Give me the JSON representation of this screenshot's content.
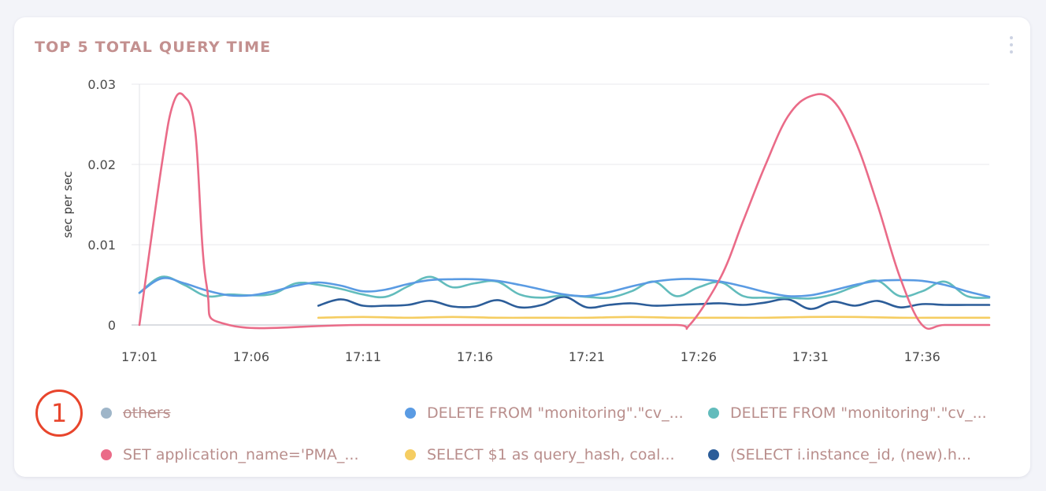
{
  "card": {
    "title": "TOP 5 TOTAL QUERY TIME",
    "menu_icon": "kebab-menu-icon"
  },
  "badge": {
    "label": "1",
    "color": "#e8452c"
  },
  "chart_data": {
    "type": "line",
    "title": "TOP 5 TOTAL QUERY TIME",
    "xlabel": "",
    "ylabel": "sec per sec",
    "ylim": [
      0,
      0.03
    ],
    "xlim": [
      0,
      38
    ],
    "yticks": [
      0,
      0.01,
      0.02,
      0.03
    ],
    "yticklabels": [
      "0",
      "0.01",
      "0.02",
      "0.03"
    ],
    "xticks": [
      0,
      5,
      10,
      15,
      20,
      25,
      30,
      35
    ],
    "xticklabels": [
      "17:01",
      "17:06",
      "17:11",
      "17:16",
      "17:21",
      "17:26",
      "17:31",
      "17:36"
    ],
    "grid": true,
    "legend_position": "bottom",
    "series": [
      {
        "name": "others",
        "color": "#9fb6c9",
        "hidden": true,
        "x": [],
        "y": []
      },
      {
        "name": "DELETE FROM \"monitoring\".\"cv_...",
        "color": "#5a9be3",
        "hidden": false,
        "x": [
          0,
          1,
          2,
          3,
          4,
          5,
          6,
          7,
          8,
          9,
          10,
          11,
          12,
          13,
          14,
          15,
          16,
          17,
          18,
          19,
          20,
          21,
          22,
          23,
          24,
          25,
          26,
          27,
          28,
          29,
          30,
          31,
          32,
          33,
          34,
          35,
          36,
          37,
          38
        ],
        "y": [
          0.004,
          0.0058,
          0.0052,
          0.0043,
          0.0037,
          0.0037,
          0.0042,
          0.0049,
          0.0053,
          0.0049,
          0.0042,
          0.0044,
          0.0051,
          0.0056,
          0.0057,
          0.0057,
          0.0055,
          0.005,
          0.0044,
          0.0038,
          0.0036,
          0.0041,
          0.0048,
          0.0054,
          0.0057,
          0.0057,
          0.0054,
          0.0048,
          0.0041,
          0.0036,
          0.0037,
          0.0043,
          0.005,
          0.0055,
          0.0056,
          0.0055,
          0.005,
          0.0042,
          0.0035
        ]
      },
      {
        "name": "DELETE FROM \"monitoring\".\"cv_...",
        "color": "#62bcbc",
        "hidden": false,
        "x": [
          0,
          1,
          2,
          3,
          4,
          5,
          6,
          7,
          8,
          9,
          10,
          11,
          12,
          13,
          14,
          15,
          16,
          17,
          18,
          19,
          20,
          21,
          22,
          23,
          24,
          25,
          26,
          27,
          28,
          29,
          30,
          31,
          32,
          33,
          34,
          35,
          36,
          37,
          38
        ],
        "y": [
          0.004,
          0.006,
          0.005,
          0.0036,
          0.0038,
          0.0037,
          0.0039,
          0.0052,
          0.005,
          0.0045,
          0.0038,
          0.0035,
          0.0048,
          0.006,
          0.0047,
          0.0052,
          0.0054,
          0.0038,
          0.0034,
          0.0037,
          0.0035,
          0.0034,
          0.0042,
          0.0054,
          0.0036,
          0.0047,
          0.0053,
          0.0036,
          0.0034,
          0.0034,
          0.0033,
          0.0038,
          0.0048,
          0.0055,
          0.0036,
          0.0042,
          0.0054,
          0.0036,
          0.0034
        ]
      },
      {
        "name": "SET application_name='PMA_...",
        "color": "#ea6b88",
        "hidden": false,
        "x": [
          0,
          1,
          1.5,
          2,
          2.5,
          3,
          4,
          10,
          20,
          24,
          24.6,
          26,
          27,
          28,
          29,
          30,
          31,
          32,
          33,
          34,
          35,
          36,
          38
        ],
        "y": [
          0,
          0.02,
          0.0275,
          0.0285,
          0.024,
          0.005,
          0,
          0,
          0,
          0,
          0,
          0.006,
          0.013,
          0.02,
          0.026,
          0.0285,
          0.028,
          0.023,
          0.015,
          0.006,
          0,
          0,
          0
        ]
      },
      {
        "name": "SELECT $1 as query_hash, coal...",
        "color": "#f5cd62",
        "hidden": false,
        "x": [
          8,
          10,
          12,
          14,
          16,
          18,
          20,
          22,
          24,
          26,
          28,
          30,
          32,
          34,
          36,
          38
        ],
        "y": [
          0.0009,
          0.001,
          0.0009,
          0.001,
          0.0009,
          0.0009,
          0.0009,
          0.001,
          0.0009,
          0.0009,
          0.0009,
          0.001,
          0.001,
          0.0009,
          0.0009,
          0.0009
        ]
      },
      {
        "name": "(SELECT i.instance_id, (new).h...",
        "color": "#2c5d99",
        "hidden": false,
        "x": [
          8,
          9,
          10,
          11,
          12,
          13,
          14,
          15,
          16,
          17,
          18,
          19,
          20,
          21,
          22,
          23,
          24,
          25,
          26,
          27,
          28,
          29,
          30,
          31,
          32,
          33,
          34,
          35,
          36,
          37,
          38
        ],
        "y": [
          0.0024,
          0.0032,
          0.0024,
          0.0024,
          0.0025,
          0.003,
          0.0023,
          0.0023,
          0.0031,
          0.0022,
          0.0025,
          0.0035,
          0.0022,
          0.0025,
          0.0027,
          0.0024,
          0.0025,
          0.0026,
          0.0027,
          0.0025,
          0.0028,
          0.0032,
          0.002,
          0.0029,
          0.0024,
          0.003,
          0.0022,
          0.0026,
          0.0025,
          0.0025,
          0.0025
        ]
      }
    ]
  }
}
